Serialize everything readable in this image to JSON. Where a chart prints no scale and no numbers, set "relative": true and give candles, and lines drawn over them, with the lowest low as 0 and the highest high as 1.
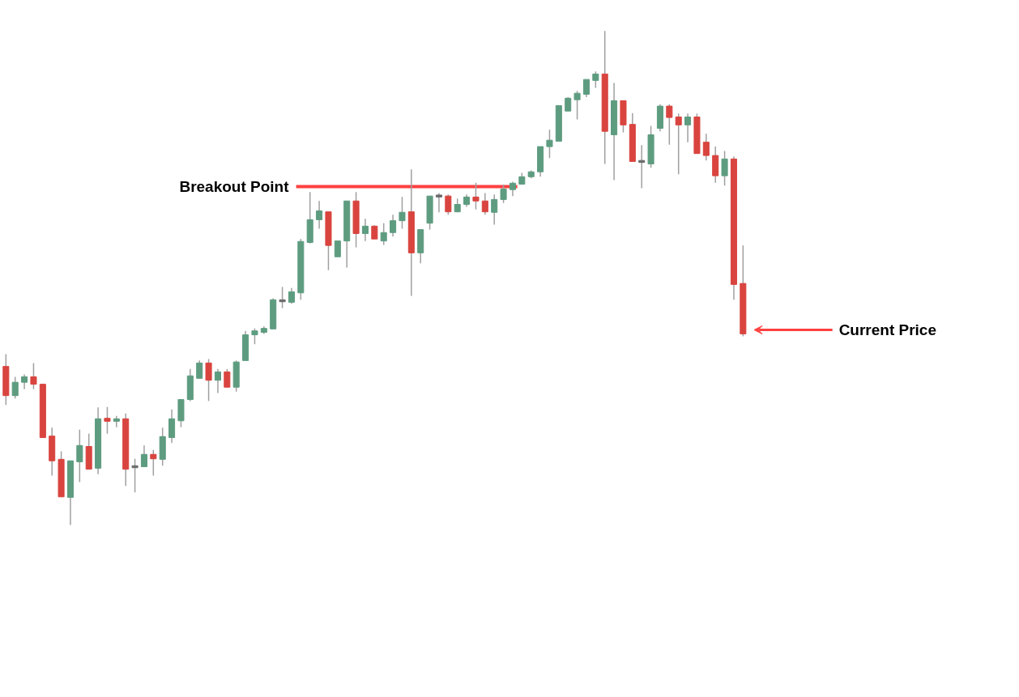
{
  "chart_data": {
    "type": "candlestick",
    "relative": true,
    "grid": false,
    "categories": [
      null,
      null,
      null,
      null,
      null,
      null,
      null,
      null,
      null,
      null,
      null,
      null,
      null,
      null,
      null,
      null,
      null,
      null,
      null,
      null,
      null,
      null,
      null,
      null,
      null,
      null,
      null,
      null,
      null,
      null,
      null,
      null,
      null,
      null,
      null,
      null,
      null,
      null,
      null,
      null,
      null,
      null,
      null,
      null,
      null,
      null,
      null,
      null,
      null,
      null,
      null,
      null,
      null,
      null,
      null,
      null,
      null,
      null,
      null,
      null,
      null,
      null,
      null,
      null,
      null,
      null,
      null,
      null,
      null,
      null,
      null,
      null,
      null,
      null,
      null,
      null,
      null,
      null,
      null,
      null,
      null
    ],
    "ohlc": [
      [
        0.321,
        0.346,
        0.243,
        0.262
      ],
      [
        0.262,
        0.3,
        0.256,
        0.289
      ],
      [
        0.289,
        0.305,
        0.275,
        0.3
      ],
      [
        0.3,
        0.328,
        0.275,
        0.285
      ],
      [
        0.285,
        0.285,
        0.177,
        0.177
      ],
      [
        0.18,
        0.197,
        0.1,
        0.13
      ],
      [
        0.133,
        0.149,
        0.057,
        0.057
      ],
      [
        0.056,
        0.13,
        0.0,
        0.13
      ],
      [
        0.128,
        0.193,
        0.087,
        0.161
      ],
      [
        0.159,
        0.185,
        0.113,
        0.113
      ],
      [
        0.115,
        0.238,
        0.103,
        0.215
      ],
      [
        0.216,
        0.239,
        0.185,
        0.21
      ],
      [
        0.21,
        0.221,
        0.198,
        0.215
      ],
      [
        0.215,
        0.226,
        0.079,
        0.113
      ],
      [
        0.118,
        0.134,
        0.066,
        0.116
      ],
      [
        0.118,
        0.161,
        0.118,
        0.143
      ],
      [
        0.143,
        0.152,
        0.1,
        0.134
      ],
      [
        0.133,
        0.197,
        0.12,
        0.179
      ],
      [
        0.177,
        0.234,
        0.166,
        0.215
      ],
      [
        0.211,
        0.254,
        0.198,
        0.254
      ],
      [
        0.254,
        0.316,
        0.251,
        0.302
      ],
      [
        0.297,
        0.333,
        0.297,
        0.328
      ],
      [
        0.328,
        0.336,
        0.251,
        0.293
      ],
      [
        0.293,
        0.316,
        0.267,
        0.31
      ],
      [
        0.31,
        0.316,
        0.279,
        0.279
      ],
      [
        0.279,
        0.333,
        0.27,
        0.33
      ],
      [
        0.333,
        0.393,
        0.333,
        0.385
      ],
      [
        0.385,
        0.398,
        0.366,
        0.393
      ],
      [
        0.39,
        0.402,
        0.387,
        0.398
      ],
      [
        0.397,
        0.459,
        0.397,
        0.456
      ],
      [
        0.452,
        0.482,
        0.439,
        0.454
      ],
      [
        0.451,
        0.48,
        0.448,
        0.472
      ],
      [
        0.47,
        0.579,
        0.456,
        0.574
      ],
      [
        0.572,
        0.674,
        0.57,
        0.618
      ],
      [
        0.618,
        0.656,
        0.6,
        0.636
      ],
      [
        0.634,
        0.634,
        0.516,
        0.566
      ],
      [
        0.543,
        0.575,
        0.543,
        0.575
      ],
      [
        0.575,
        0.656,
        0.521,
        0.656
      ],
      [
        0.656,
        0.674,
        0.562,
        0.59
      ],
      [
        0.59,
        0.62,
        0.575,
        0.605
      ],
      [
        0.605,
        0.607,
        0.579,
        0.579
      ],
      [
        0.575,
        0.611,
        0.567,
        0.592
      ],
      [
        0.592,
        0.628,
        0.584,
        0.616
      ],
      [
        0.616,
        0.664,
        0.6,
        0.633
      ],
      [
        0.634,
        0.72,
        0.464,
        0.551
      ],
      [
        0.551,
        0.598,
        0.53,
        0.598
      ],
      [
        0.611,
        0.666,
        0.598,
        0.666
      ],
      [
        0.664,
        0.672,
        0.633,
        0.666
      ],
      [
        0.666,
        0.669,
        0.628,
        0.634
      ],
      [
        0.634,
        0.661,
        0.633,
        0.649
      ],
      [
        0.649,
        0.669,
        0.644,
        0.664
      ],
      [
        0.664,
        0.693,
        0.639,
        0.656
      ],
      [
        0.656,
        0.672,
        0.628,
        0.634
      ],
      [
        0.633,
        0.669,
        0.608,
        0.659
      ],
      [
        0.659,
        0.689,
        0.652,
        0.68
      ],
      [
        0.679,
        0.695,
        0.666,
        0.692
      ],
      [
        0.69,
        0.713,
        0.689,
        0.705
      ],
      [
        0.705,
        0.718,
        0.702,
        0.715
      ],
      [
        0.715,
        0.766,
        0.705,
        0.766
      ],
      [
        0.766,
        0.8,
        0.743,
        0.779
      ],
      [
        0.777,
        0.849,
        0.777,
        0.849
      ],
      [
        0.838,
        0.866,
        0.838,
        0.864
      ],
      [
        0.861,
        0.879,
        0.821,
        0.874
      ],
      [
        0.872,
        0.902,
        0.866,
        0.902
      ],
      [
        0.9,
        0.918,
        0.885,
        0.913
      ],
      [
        0.913,
        1.0,
        0.731,
        0.797
      ],
      [
        0.79,
        0.895,
        0.698,
        0.859
      ],
      [
        0.859,
        0.859,
        0.795,
        0.81
      ],
      [
        0.811,
        0.834,
        0.736,
        0.736
      ],
      [
        0.736,
        0.769,
        0.682,
        0.734
      ],
      [
        0.731,
        0.808,
        0.723,
        0.79
      ],
      [
        0.803,
        0.852,
        0.797,
        0.848
      ],
      [
        0.848,
        0.852,
        0.77,
        0.825
      ],
      [
        0.826,
        0.833,
        0.71,
        0.81
      ],
      [
        0.81,
        0.833,
        0.775,
        0.826
      ],
      [
        0.826,
        0.833,
        0.752,
        0.752
      ],
      [
        0.775,
        0.792,
        0.738,
        0.748
      ],
      [
        0.748,
        0.766,
        0.693,
        0.707
      ],
      [
        0.707,
        0.757,
        0.687,
        0.741
      ],
      [
        0.741,
        0.746,
        0.456,
        0.487
      ],
      [
        0.489,
        0.566,
        0.382,
        0.387
      ]
    ],
    "colors": [
      "#d9443f",
      "#5e9c80",
      "#5e9c80",
      "#d9443f",
      "#d9443f",
      "#d9443f",
      "#d9443f",
      "#5e9c80",
      "#5e9c80",
      "#d9443f",
      "#5e9c80",
      "#d9443f",
      "#5e9c80",
      "#d9443f",
      "#6b6b6b",
      "#5e9c80",
      "#d9443f",
      "#5e9c80",
      "#5e9c80",
      "#5e9c80",
      "#5e9c80",
      "#5e9c80",
      "#d9443f",
      "#5e9c80",
      "#d9443f",
      "#5e9c80",
      "#5e9c80",
      "#5e9c80",
      "#5e9c80",
      "#5e9c80",
      "#6b6b6b",
      "#5e9c80",
      "#5e9c80",
      "#5e9c80",
      "#5e9c80",
      "#d9443f",
      "#5e9c80",
      "#5e9c80",
      "#d9443f",
      "#5e9c80",
      "#d9443f",
      "#5e9c80",
      "#5e9c80",
      "#5e9c80",
      "#d9443f",
      "#5e9c80",
      "#5e9c80",
      "#6b6b6b",
      "#d9443f",
      "#5e9c80",
      "#5e9c80",
      "#d9443f",
      "#d9443f",
      "#5e9c80",
      "#5e9c80",
      "#5e9c80",
      "#5e9c80",
      "#5e9c80",
      "#5e9c80",
      "#5e9c80",
      "#5e9c80",
      "#5e9c80",
      "#5e9c80",
      "#5e9c80",
      "#5e9c80",
      "#d9443f",
      "#5e9c80",
      "#d9443f",
      "#d9443f",
      "#6b6b6b",
      "#5e9c80",
      "#5e9c80",
      "#d9443f",
      "#d9443f",
      "#5e9c80",
      "#d9443f",
      "#d9443f",
      "#d9443f",
      "#5e9c80",
      "#d9443f",
      "#d9443f"
    ],
    "ref_lines": [
      {
        "axis": "y",
        "value": 0.685,
        "label": "Breakout Point",
        "color": "#ff4040"
      }
    ],
    "annotations": [
      "Current Price"
    ]
  }
}
